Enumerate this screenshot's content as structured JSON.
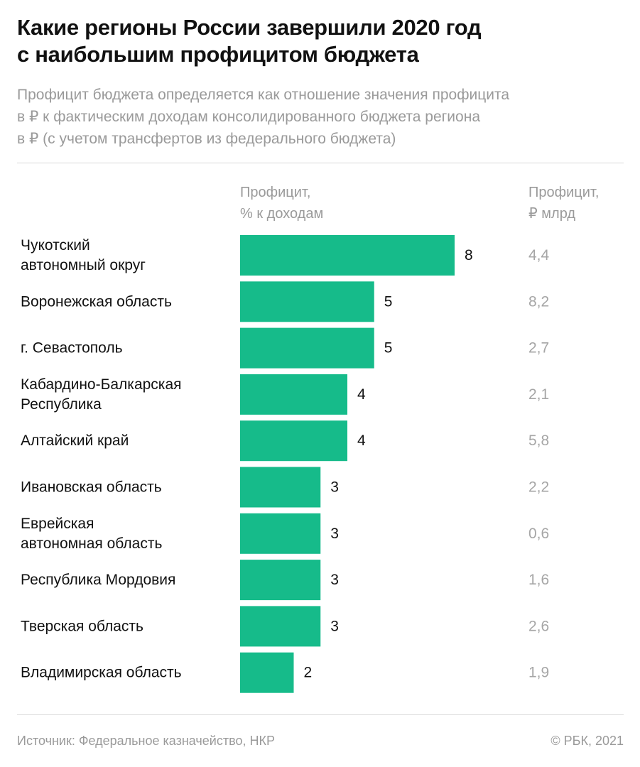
{
  "header": {
    "title_lines": [
      "Какие регионы России завершили 2020 год",
      "с наибольшим профицитом бюджета"
    ],
    "subtitle_lines": [
      "Профицит бюджета определяется как отношение значения профицита",
      "в ₽ к фактическим доходам консолидированного бюджета региона",
      "в ₽ (с учетом трансфертов из федерального бюджета)"
    ]
  },
  "columns": {
    "pct_header_lines": [
      "Профицит,",
      "% к доходам"
    ],
    "abs_header_lines": [
      "Профицит,",
      "₽ млрд"
    ]
  },
  "chart_data": {
    "type": "bar",
    "orientation": "horizontal",
    "title": "Какие регионы России завершили 2020 год с наибольшим профицитом бюджета",
    "xlabel": "Профицит, % к доходам",
    "ylabel": "",
    "xlim": [
      0,
      8
    ],
    "grid": false,
    "legend": "none",
    "bar_color": "#16bb8a",
    "categories": [
      [
        "Чукотский",
        "автономный округ"
      ],
      [
        "Воронежская область"
      ],
      [
        "г. Севастополь"
      ],
      [
        "Кабардино-Балкарская",
        "Республика"
      ],
      [
        "Алтайский край"
      ],
      [
        "Ивановская область"
      ],
      [
        "Еврейская",
        "автономная область"
      ],
      [
        "Республика Мордовия"
      ],
      [
        "Тверская область"
      ],
      [
        "Владимирская область"
      ]
    ],
    "series": [
      {
        "name": "Профицит, % к доходам",
        "values": [
          8,
          5,
          5,
          4,
          4,
          3,
          3,
          3,
          3,
          2
        ]
      },
      {
        "name": "Профицит, ₽ млрд",
        "values": [
          "4,4",
          "8,2",
          "2,7",
          "2,1",
          "5,8",
          "2,2",
          "0,6",
          "1,6",
          "2,6",
          "1,9"
        ]
      }
    ]
  },
  "footer": {
    "source": "Источник: Федеральное казначейство, НКР",
    "copyright": "© РБК, 2021"
  }
}
